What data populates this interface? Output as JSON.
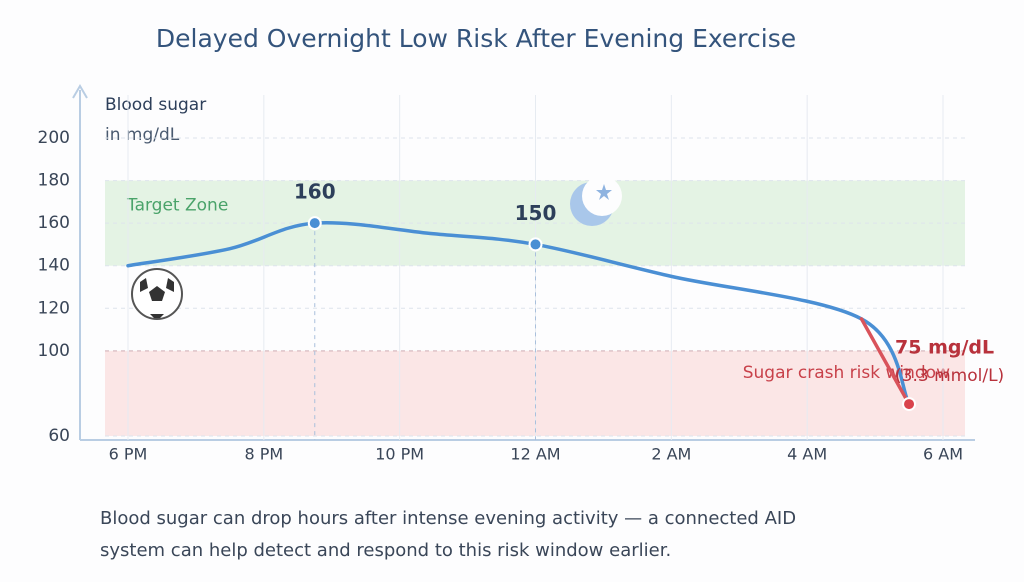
{
  "chart_data": {
    "type": "line",
    "title": "Delayed Overnight Low Risk After Evening Exercise",
    "y_label": "Blood sugar",
    "y_unit": "in mg/dL",
    "caption": [
      "Blood sugar can drop hours after intense evening activity — a connected AID",
      "system can help detect and respond to this risk window earlier."
    ],
    "x": [
      18,
      19.5,
      20.75,
      22.5,
      24,
      26,
      28.8,
      29.5
    ],
    "series": [
      {
        "color": "#4a8fd4",
        "values": [
          140,
          148,
          160,
          155,
          150,
          135,
          115,
          75
        ],
        "value_labels": [
          null,
          null,
          "160",
          null,
          "150",
          null,
          null,
          "75 mg/dL"
        ]
      }
    ],
    "end_note": "(3.3 mmol/L)",
    "bands": [
      {
        "label": "Target Zone",
        "range": [
          140,
          180
        ],
        "color": "#e4f3e4"
      },
      {
        "label": "Sugar crash risk window",
        "range": [
          60,
          100
        ],
        "color": "#fbe6e6"
      }
    ],
    "xlim": [
      18,
      30
    ],
    "xticks": [
      {
        "value": 18,
        "label": "6 PM"
      },
      {
        "value": 20,
        "label": "8 PM"
      },
      {
        "value": 22,
        "label": "10 PM"
      },
      {
        "value": 24,
        "label": "12 AM"
      },
      {
        "value": 26,
        "label": "2 AM"
      },
      {
        "value": 28,
        "label": "4 AM"
      },
      {
        "value": 30,
        "label": "6 AM"
      }
    ],
    "ylim": [
      60,
      200
    ],
    "yticks": [
      200,
      180,
      160,
      140,
      120,
      100,
      60
    ],
    "grid": true
  }
}
